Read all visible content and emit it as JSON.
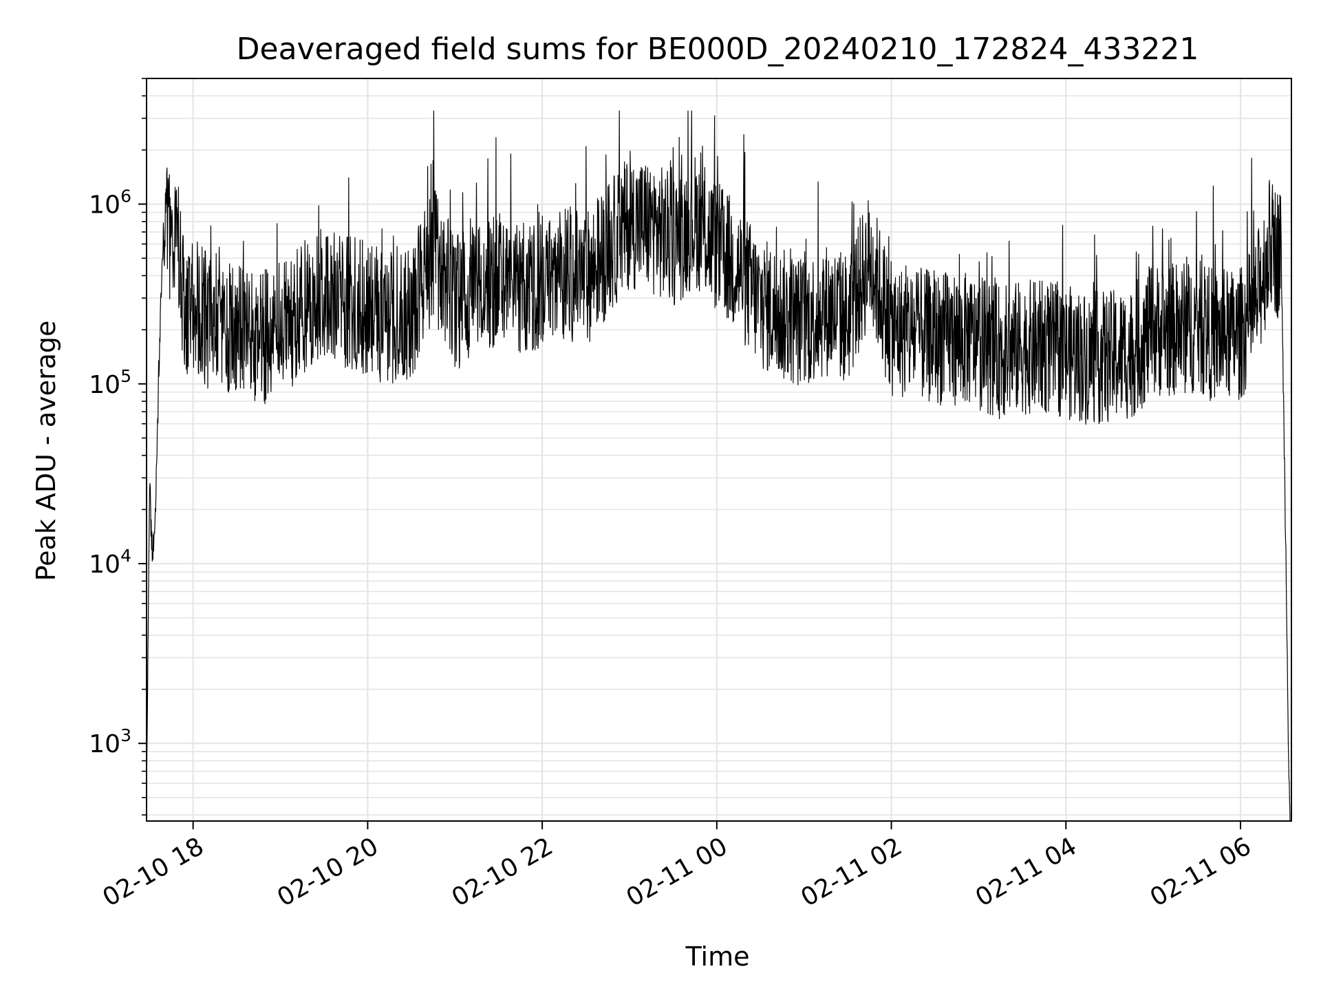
{
  "chart_data": {
    "type": "line",
    "title": "Deaveraged field sums for BE000D_20240210_172824_433221",
    "xlabel": "Time",
    "ylabel": "Peak ADU - average",
    "yscale": "log",
    "ylim": [
      370,
      5000000
    ],
    "xlim": [
      "2024-02-10 17:28",
      "2024-02-11 06:35"
    ],
    "grid": true,
    "grid_color": "#e4e4e4",
    "line_color": "#000000",
    "x_ticks": [
      {
        "value": "2024-02-10 18:00",
        "label": "02-10 18"
      },
      {
        "value": "2024-02-10 20:00",
        "label": "02-10 20"
      },
      {
        "value": "2024-02-10 22:00",
        "label": "02-10 22"
      },
      {
        "value": "2024-02-11 00:00",
        "label": "02-11 00"
      },
      {
        "value": "2024-02-11 02:00",
        "label": "02-11 02"
      },
      {
        "value": "2024-02-11 04:00",
        "label": "02-11 04"
      },
      {
        "value": "2024-02-11 06:00",
        "label": "02-11 06"
      }
    ],
    "y_ticks": [
      {
        "value": 1000,
        "base": "10",
        "exp": "3"
      },
      {
        "value": 10000,
        "base": "10",
        "exp": "4"
      },
      {
        "value": 100000,
        "base": "10",
        "exp": "5"
      },
      {
        "value": 1000000,
        "base": "10",
        "exp": "6"
      }
    ],
    "series": [
      {
        "x": [
          "2024-02-10 17:28",
          "2024-02-10 17:30",
          "2024-02-10 17:32",
          "2024-02-10 17:34",
          "2024-02-10 17:36",
          "2024-02-10 17:38",
          "2024-02-10 17:40",
          "2024-02-10 17:45",
          "2024-02-10 17:50",
          "2024-02-10 17:55",
          "2024-02-10 18:00",
          "2024-02-10 18:15",
          "2024-02-10 18:30",
          "2024-02-10 18:45",
          "2024-02-10 19:00",
          "2024-02-10 19:15",
          "2024-02-10 19:30",
          "2024-02-10 19:45",
          "2024-02-10 20:00",
          "2024-02-10 20:15",
          "2024-02-10 20:30",
          "2024-02-10 20:45",
          "2024-02-10 21:00",
          "2024-02-10 21:15",
          "2024-02-10 21:30",
          "2024-02-10 21:45",
          "2024-02-10 22:00",
          "2024-02-10 22:15",
          "2024-02-10 22:30",
          "2024-02-10 22:45",
          "2024-02-10 23:00",
          "2024-02-10 23:15",
          "2024-02-10 23:30",
          "2024-02-10 23:45",
          "2024-02-11 00:00",
          "2024-02-11 00:15",
          "2024-02-11 00:30",
          "2024-02-11 00:45",
          "2024-02-11 01:00",
          "2024-02-11 01:15",
          "2024-02-11 01:30",
          "2024-02-11 01:45",
          "2024-02-11 02:00",
          "2024-02-11 02:15",
          "2024-02-11 02:30",
          "2024-02-11 02:45",
          "2024-02-11 03:00",
          "2024-02-11 03:15",
          "2024-02-11 03:30",
          "2024-02-11 03:45",
          "2024-02-11 04:00",
          "2024-02-11 04:15",
          "2024-02-11 04:30",
          "2024-02-11 04:45",
          "2024-02-11 05:00",
          "2024-02-11 05:15",
          "2024-02-11 05:30",
          "2024-02-11 05:45",
          "2024-02-11 06:00",
          "2024-02-11 06:10",
          "2024-02-11 06:20",
          "2024-02-11 06:28",
          "2024-02-11 06:31",
          "2024-02-11 06:33",
          "2024-02-11 06:34"
        ],
        "y": [
          400,
          28000,
          11000,
          20000,
          75000,
          300000,
          800000,
          650000,
          500000,
          200000,
          280000,
          200000,
          200000,
          180000,
          190000,
          260000,
          320000,
          290000,
          260000,
          230000,
          250000,
          550000,
          280000,
          330000,
          370000,
          330000,
          380000,
          420000,
          380000,
          560000,
          800000,
          760000,
          620000,
          820000,
          580000,
          430000,
          280000,
          240000,
          220000,
          260000,
          230000,
          500000,
          200000,
          190000,
          180000,
          180000,
          170000,
          150000,
          160000,
          160000,
          150000,
          140000,
          140000,
          150000,
          200000,
          200000,
          210000,
          180000,
          190000,
          260000,
          600000,
          520000,
          15000,
          1000,
          400
        ]
      }
    ]
  }
}
